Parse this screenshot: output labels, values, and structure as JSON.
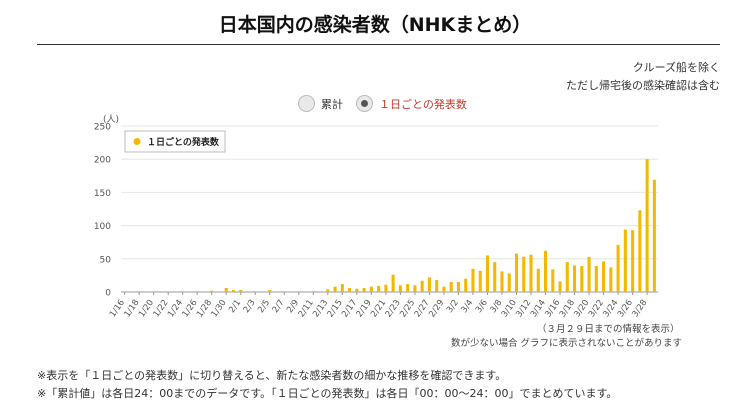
{
  "header": {
    "title": "日本国内の感染者数（NHKまとめ）",
    "note1": "クルーズ船を除く",
    "note2": "ただし帰宅後の感染確認は含む"
  },
  "toggles": [
    {
      "label": "累計",
      "checked": false
    },
    {
      "label": "１日ごとの発表数",
      "checked": true
    }
  ],
  "chart_note1": "（３月２９日までの情報を表示）",
  "chart_note2": "数が少ない場合 グラフに表示されないことがあります",
  "footnotes": [
    "※表示を「１日ごとの発表数」に切り替えると、新たな感染者数の細かな推移を確認できます。",
    "※「累計値」は各日24：00までのデータです。「１日ごとの発表数」は各日「00：00〜24：00」でまとめています。"
  ],
  "colors": {
    "bar": "#f5b800",
    "grid": "#e6e6e6",
    "axis": "#999999",
    "active_label": "#c0392b"
  },
  "chart_data": {
    "type": "bar",
    "ylabel": "(人)",
    "ylim": [
      0,
      250
    ],
    "yticks": [
      0,
      50,
      100,
      150,
      200,
      250
    ],
    "grid": true,
    "legend": {
      "position": "top-left",
      "entries": [
        "１日ごとの発表数"
      ]
    },
    "xtick_labels": [
      "1/16",
      "1/18",
      "1/20",
      "1/22",
      "1/24",
      "1/26",
      "1/28",
      "1/30",
      "2/1",
      "2/3",
      "2/5",
      "2/7",
      "2/9",
      "2/11",
      "2/13",
      "2/15",
      "2/17",
      "2/19",
      "2/21",
      "2/23",
      "2/25",
      "2/27",
      "2/29",
      "3/2",
      "3/4",
      "3/6",
      "3/8",
      "3/10",
      "3/12",
      "3/14",
      "3/16",
      "3/18",
      "3/20",
      "3/22",
      "3/24",
      "3/26",
      "3/28"
    ],
    "categories": [
      "1/16",
      "1/17",
      "1/18",
      "1/19",
      "1/20",
      "1/21",
      "1/22",
      "1/23",
      "1/24",
      "1/25",
      "1/26",
      "1/27",
      "1/28",
      "1/29",
      "1/30",
      "1/31",
      "2/1",
      "2/2",
      "2/3",
      "2/4",
      "2/5",
      "2/6",
      "2/7",
      "2/8",
      "2/9",
      "2/10",
      "2/11",
      "2/12",
      "2/13",
      "2/14",
      "2/15",
      "2/16",
      "2/17",
      "2/18",
      "2/19",
      "2/20",
      "2/21",
      "2/22",
      "2/23",
      "2/24",
      "2/25",
      "2/26",
      "2/27",
      "2/28",
      "2/29",
      "3/1",
      "3/2",
      "3/3",
      "3/4",
      "3/5",
      "3/6",
      "3/7",
      "3/8",
      "3/9",
      "3/10",
      "3/11",
      "3/12",
      "3/13",
      "3/14",
      "3/15",
      "3/16",
      "3/17",
      "3/18",
      "3/19",
      "3/20",
      "3/21",
      "3/22",
      "3/23",
      "3/24",
      "3/25",
      "3/26",
      "3/27",
      "3/28",
      "3/29"
    ],
    "series": [
      {
        "name": "１日ごとの発表数",
        "values": [
          1,
          0,
          0,
          0,
          0,
          0,
          0,
          0,
          1,
          1,
          0,
          0,
          2,
          1,
          6,
          3,
          3,
          0,
          0,
          1,
          3,
          1,
          0,
          0,
          0,
          1,
          0,
          0,
          4,
          8,
          12,
          6,
          5,
          6,
          8,
          9,
          11,
          26,
          10,
          12,
          10,
          17,
          22,
          18,
          8,
          15,
          15,
          20,
          35,
          32,
          55,
          45,
          31,
          28,
          58,
          53,
          56,
          35,
          62,
          34,
          16,
          45,
          40,
          39,
          53,
          39,
          46,
          37,
          71,
          94,
          93,
          123,
          200,
          169
        ]
      }
    ]
  }
}
